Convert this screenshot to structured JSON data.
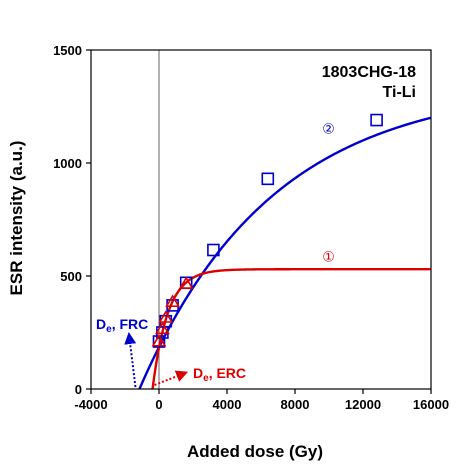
{
  "chart_data": {
    "type": "scatter",
    "title": "",
    "sample": [
      "1803CHG-18",
      "Ti-Li"
    ],
    "xlabel": "Added dose (Gy)",
    "ylabel": "ESR intensity (a.u.)",
    "xlim": [
      -4000,
      16000
    ],
    "ylim": [
      0,
      1500
    ],
    "xticks": [
      -4000,
      0,
      4000,
      8000,
      12000,
      16000
    ],
    "yticks": [
      0,
      500,
      1000,
      1500
    ],
    "xtick_labels": [
      "-4000",
      "0",
      "4000",
      "8000",
      "12000",
      "16000"
    ],
    "ytick_labels": [
      "0",
      "500",
      "1000",
      "1500"
    ],
    "series": [
      {
        "label": "②",
        "marker": "square",
        "color": "#0000cc",
        "points": [
          [
            0,
            210
          ],
          [
            200,
            250
          ],
          [
            400,
            300
          ],
          [
            800,
            370
          ],
          [
            1600,
            470
          ],
          [
            3200,
            615
          ],
          [
            6400,
            930
          ],
          [
            12800,
            1190
          ]
        ],
        "fit": {
          "model": "saturating-exponential",
          "intercept_x": -1150,
          "y_sat": 1350,
          "d0": 7800
        }
      },
      {
        "label": "①",
        "marker": "triangle",
        "color": "#dd0000",
        "points": [
          [
            0,
            210
          ],
          [
            200,
            265
          ],
          [
            400,
            315
          ],
          [
            800,
            385
          ],
          [
            1600,
            465
          ]
        ],
        "fit": {
          "model": "saturating-exponential",
          "intercept_x": -380,
          "y_sat": 530,
          "d0": 900
        }
      }
    ],
    "annotations": [
      {
        "base": "D",
        "sub": "e",
        "suffix": ", FRC",
        "color": "#0000cc"
      },
      {
        "base": "D",
        "sub": "e",
        "suffix": ", ERC",
        "color": "#dd0000"
      }
    ]
  }
}
